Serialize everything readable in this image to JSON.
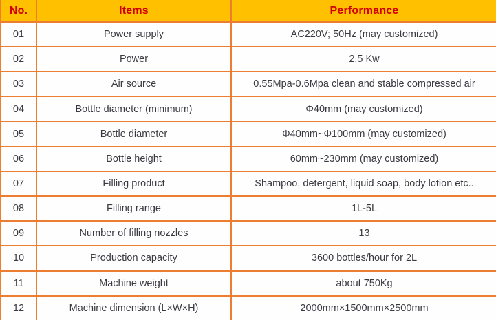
{
  "table": {
    "columns": [
      {
        "key": "no",
        "label": "No."
      },
      {
        "key": "item",
        "label": "Items"
      },
      {
        "key": "performance",
        "label": "Performance"
      }
    ],
    "rows": [
      {
        "no": "01",
        "item": "Power supply",
        "performance": "AC220V; 50Hz (may customized)"
      },
      {
        "no": "02",
        "item": "Power",
        "performance": "2.5 Kw"
      },
      {
        "no": "03",
        "item": "Air source",
        "performance": "0.55Mpa-0.6Mpa clean and stable compressed air"
      },
      {
        "no": "04",
        "item": "Bottle diameter (minimum)",
        "performance": "Φ40mm (may customized)"
      },
      {
        "no": "05",
        "item": "Bottle diameter",
        "performance": "Φ40mm~Φ100mm (may customized)"
      },
      {
        "no": "06",
        "item": "Bottle height",
        "performance": "60mm~230mm (may customized)"
      },
      {
        "no": "07",
        "item": "Filling product",
        "performance": "Shampoo, detergent, liquid soap, body lotion etc.."
      },
      {
        "no": "08",
        "item": "Filling range",
        "performance": "1L-5L"
      },
      {
        "no": "09",
        "item": "Number of filling nozzles",
        "performance": "13"
      },
      {
        "no": "10",
        "item": "Production capacity",
        "performance": "3600 bottles/hour for 2L"
      },
      {
        "no": "11",
        "item": "Machine weight",
        "performance": "about 750Kg"
      },
      {
        "no": "12",
        "item": "Machine dimension (L×W×H)",
        "performance": "2000mm×1500mm×2500mm"
      }
    ]
  },
  "colors": {
    "header_bg": "#FFC000",
    "header_text": "#D40000",
    "grid_border": "#ED7D31",
    "body_text": "#3A3A42",
    "body_bg": "#FEFEFE"
  }
}
